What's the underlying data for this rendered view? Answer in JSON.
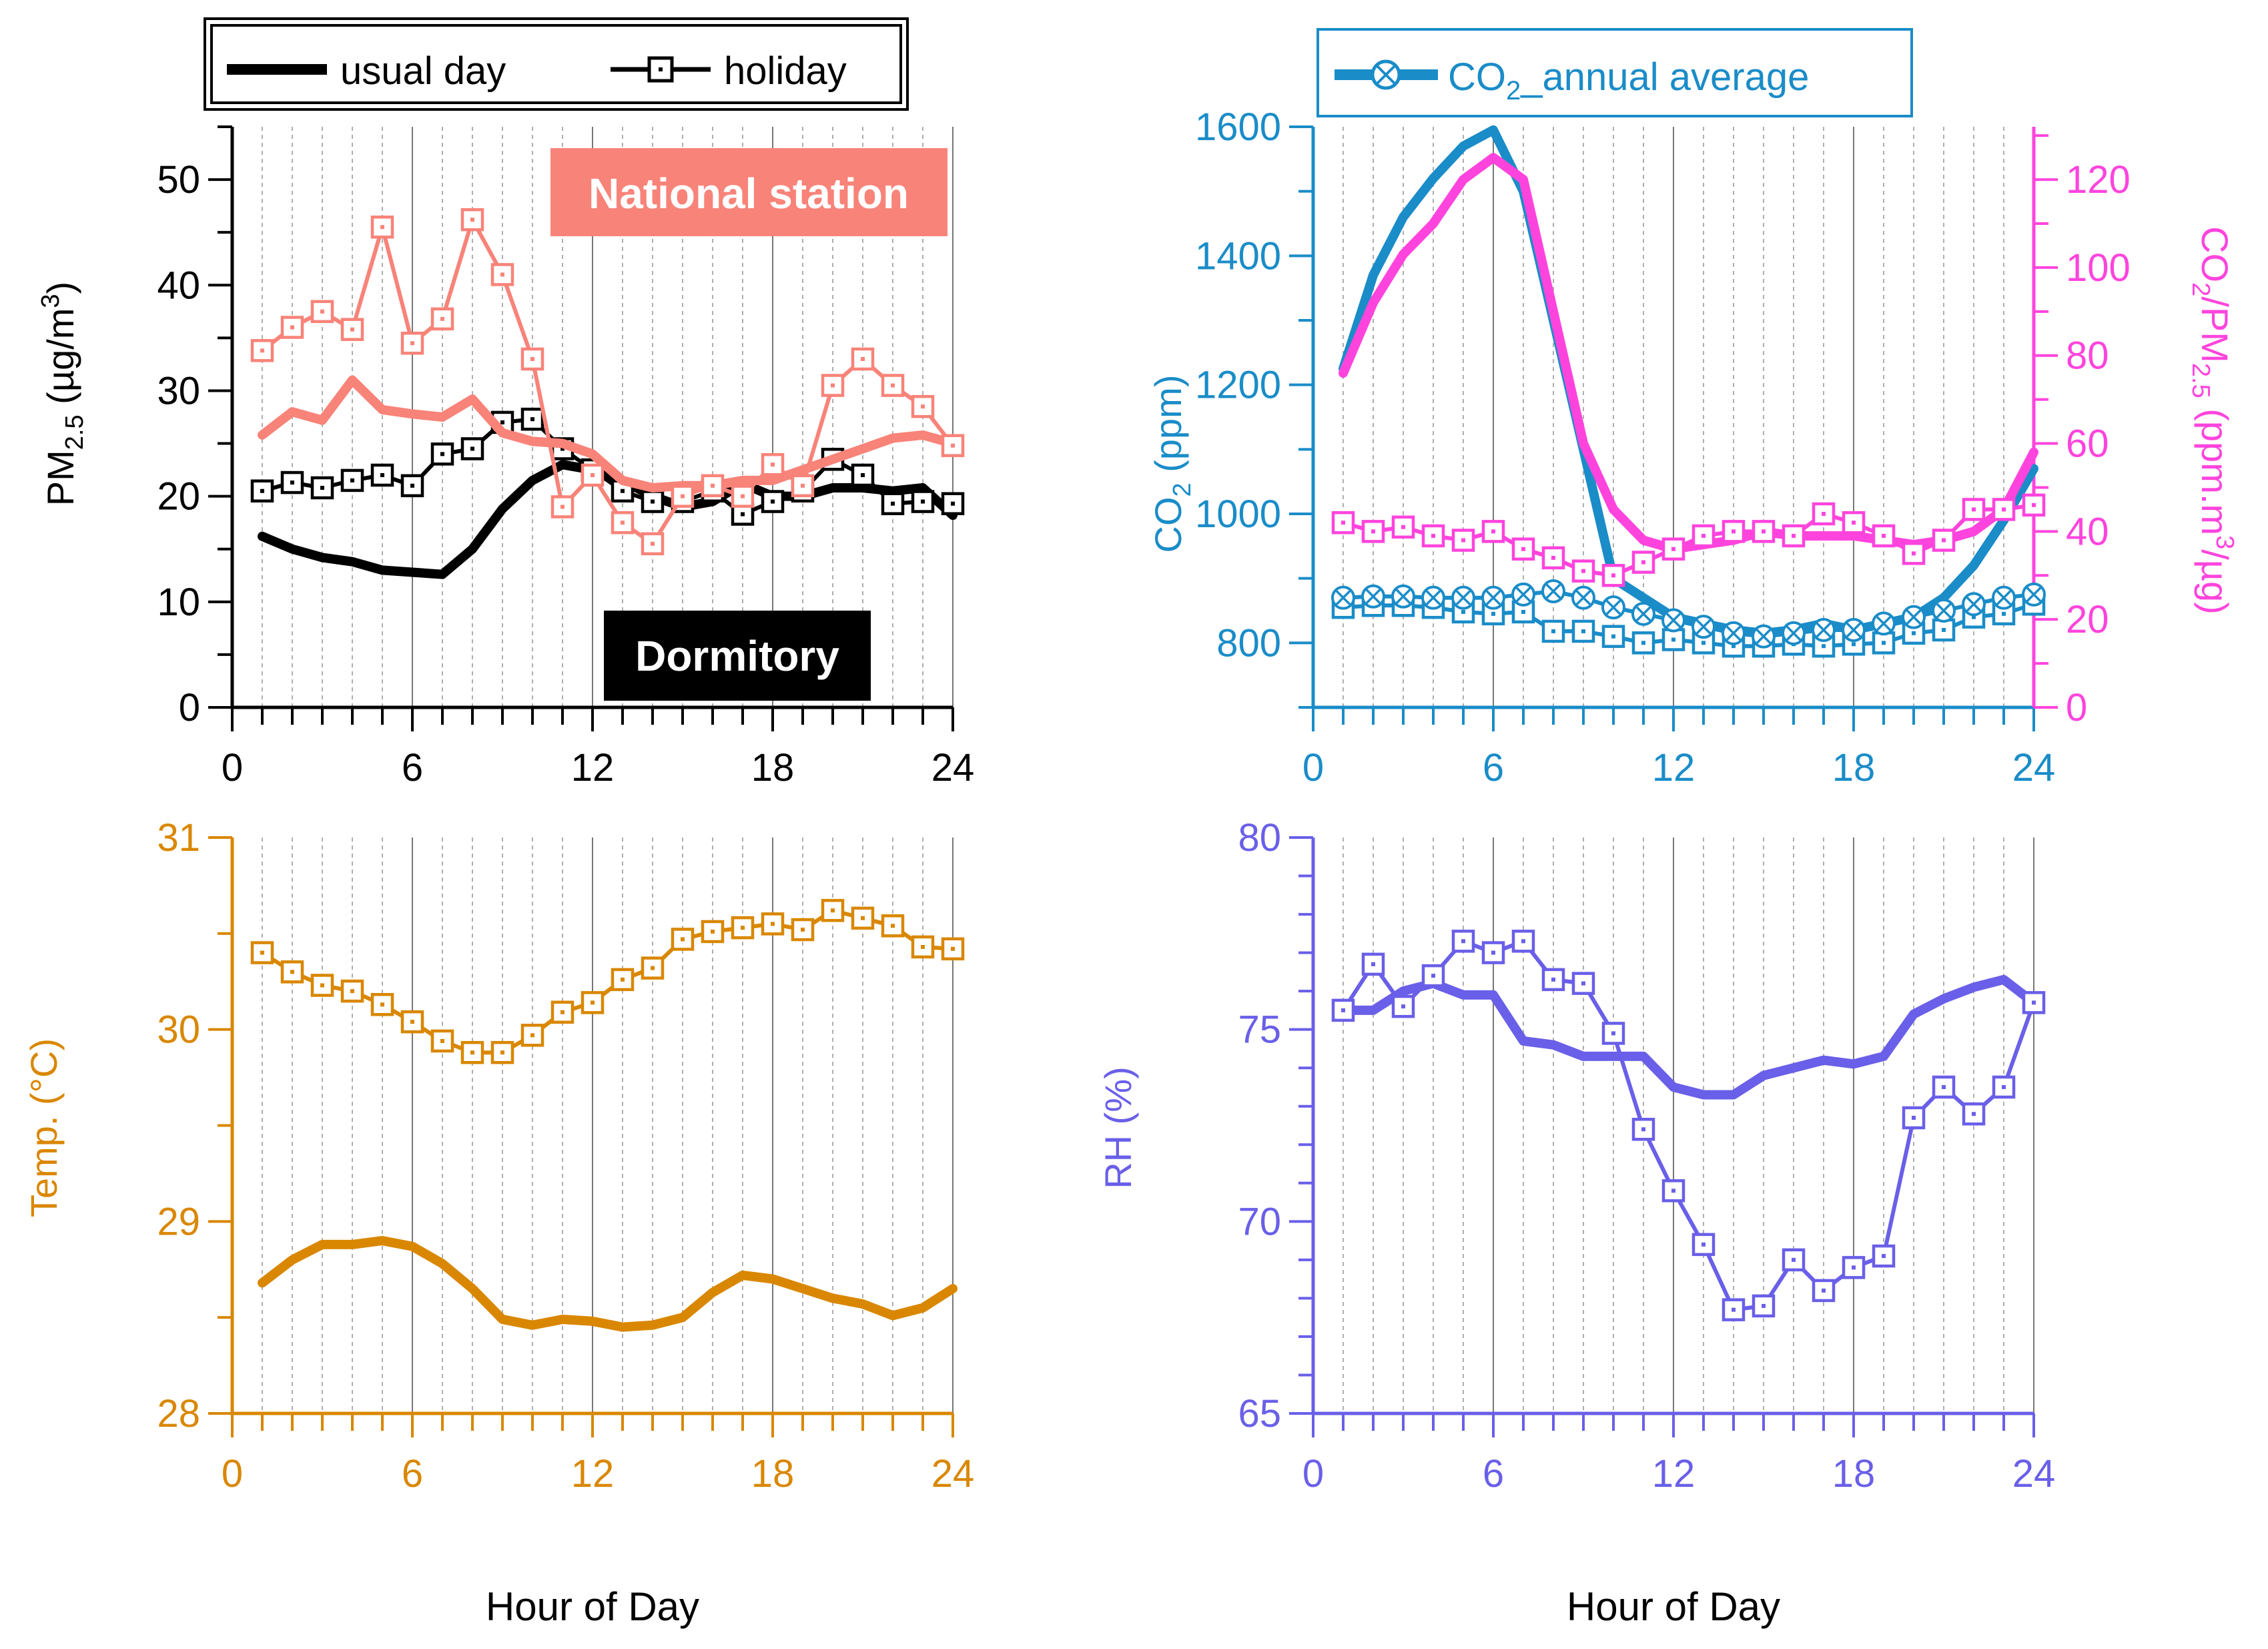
{
  "chart_data": [
    {
      "id": "pm25",
      "type": "line",
      "ylabel_main": "PM",
      "ylabel_sub": "2.5",
      "ylabel_rest": " (µg/m",
      "ylabel_sup": "3",
      "ylabel_close": ")",
      "xlim": [
        0,
        24
      ],
      "ylim": [
        0,
        55
      ],
      "x_ticks": [
        0,
        6,
        12,
        18,
        24
      ],
      "x_tick_labels": [
        "0",
        "6",
        "12",
        "18",
        "24"
      ],
      "y_ticks": [
        0,
        10,
        20,
        30,
        40,
        50
      ],
      "y_tick_labels": [
        "0",
        "10",
        "20",
        "30",
        "40",
        "50"
      ],
      "legend": {
        "usual_day": "usual day",
        "holiday": "holiday"
      },
      "annotations": {
        "national": "National station",
        "dormitory": "Dormitory"
      },
      "colors": {
        "dormitory": "#000000",
        "national": "#F88379",
        "axis": "#000000"
      },
      "x": [
        1,
        2,
        3,
        4,
        5,
        6,
        7,
        8,
        9,
        10,
        11,
        12,
        13,
        14,
        15,
        16,
        17,
        18,
        19,
        20,
        21,
        22,
        23,
        24
      ],
      "series": [
        {
          "name": "Dormitory usual day",
          "style": "thick",
          "color": "#000000",
          "values": [
            16.2,
            15,
            14.2,
            13.8,
            13,
            12.8,
            12.6,
            15,
            18.8,
            21.5,
            23,
            22.5,
            21.5,
            20,
            19,
            19.5,
            21.2,
            20,
            20,
            20.8,
            20.8,
            20.5,
            20.8,
            18.2
          ]
        },
        {
          "name": "Dormitory holiday",
          "style": "markers",
          "color": "#000000",
          "values": [
            20.5,
            21.3,
            20.8,
            21.5,
            22,
            21,
            24,
            24.5,
            27,
            27.3,
            24.5,
            22.5,
            20.5,
            19.5,
            19.5,
            20.5,
            18.3,
            19.5,
            20.5,
            23.5,
            22,
            19.3,
            19.5,
            19.3
          ]
        },
        {
          "name": "National station usual day",
          "style": "thick",
          "color": "#F88379",
          "values": [
            25.8,
            28,
            27.2,
            31,
            28.2,
            27.8,
            27.5,
            29.2,
            26,
            25.2,
            25,
            24,
            21.5,
            20.8,
            21,
            21,
            21.5,
            21.5,
            22.5,
            23.5,
            24.5,
            25.5,
            25.8,
            25
          ]
        },
        {
          "name": "National station holiday",
          "style": "markers",
          "color": "#F88379",
          "values": [
            33.8,
            36,
            37.5,
            35.8,
            45.5,
            34.5,
            36.8,
            46.2,
            41,
            33,
            19,
            22,
            17.5,
            15.5,
            20,
            21,
            20,
            23,
            21,
            30.5,
            33,
            30.5,
            28.5,
            24.8
          ]
        }
      ]
    },
    {
      "id": "co2",
      "type": "line",
      "ylabel_main": "CO",
      "ylabel_sub": "2",
      "ylabel_rest": " (ppm)",
      "y2label_main": "CO",
      "y2label_sub": "2",
      "y2label_mid": "/PM",
      "y2label_sub2": "2.5",
      "y2label_rest": " (ppm.m",
      "y2label_sup": "3",
      "y2label_close": "/µg)",
      "xlim": [
        0,
        24
      ],
      "ylim": [
        700,
        1600
      ],
      "y2lim": [
        0,
        132
      ],
      "x_ticks": [
        0,
        6,
        12,
        18,
        24
      ],
      "x_tick_labels": [
        "0",
        "6",
        "12",
        "18",
        "24"
      ],
      "y_ticks": [
        800,
        1000,
        1200,
        1400,
        1600
      ],
      "y_tick_labels": [
        "800",
        "1000",
        "1200",
        "1400",
        "1600"
      ],
      "y2_ticks": [
        0,
        20,
        40,
        60,
        80,
        100,
        120
      ],
      "y2_tick_labels": [
        "0",
        "20",
        "40",
        "60",
        "80",
        "100",
        "120"
      ],
      "legend": {
        "main": "CO",
        "sub": "2",
        "rest": "_annual average"
      },
      "colors": {
        "co2": "#1A8CC8",
        "ratio": "#FF44DD",
        "axis": "#1A8CC8",
        "axis2": "#FF44DD"
      },
      "x": [
        1,
        2,
        3,
        4,
        5,
        6,
        7,
        8,
        9,
        10,
        11,
        12,
        13,
        14,
        15,
        16,
        17,
        18,
        19,
        20,
        21,
        22,
        23,
        24
      ],
      "series": [
        {
          "name": "CO2 usual day",
          "axis": "left",
          "style": "thick",
          "color": "#1A8CC8",
          "values": [
            1225,
            1370,
            1460,
            1520,
            1570,
            1595,
            1500,
            1300,
            1100,
            900,
            870,
            840,
            830,
            820,
            815,
            820,
            830,
            820,
            830,
            840,
            870,
            920,
            990,
            1070
          ]
        },
        {
          "name": "CO2 holiday",
          "axis": "left",
          "style": "markers",
          "color": "#1A8CC8",
          "values": [
            855,
            858,
            858,
            855,
            848,
            845,
            848,
            818,
            818,
            810,
            800,
            805,
            800,
            795,
            795,
            798,
            795,
            798,
            800,
            815,
            820,
            840,
            845,
            860
          ]
        },
        {
          "name": "CO2 annual average",
          "axis": "left",
          "style": "circles",
          "color": "#1A8CC8",
          "values": [
            870,
            872,
            872,
            870,
            870,
            870,
            875,
            880,
            870,
            855,
            845,
            835,
            825,
            815,
            810,
            815,
            820,
            820,
            830,
            840,
            850,
            860,
            870,
            875
          ]
        },
        {
          "name": "CO2/PM2.5 usual day",
          "axis": "right",
          "style": "thick",
          "color": "#FF44DD",
          "values": [
            76,
            92,
            103,
            110,
            120,
            125,
            120,
            90,
            60,
            45,
            38,
            36,
            37,
            38,
            40,
            39,
            39,
            39,
            38,
            37,
            38,
            40,
            45,
            58
          ]
        },
        {
          "name": "CO2/PM2.5 holiday",
          "axis": "right",
          "style": "markers",
          "color": "#FF44DD",
          "values": [
            42,
            40,
            41,
            39,
            38,
            40,
            36,
            34,
            31,
            30,
            33,
            36,
            39,
            40,
            40,
            39,
            44,
            42,
            39,
            35,
            38,
            45,
            45,
            46
          ]
        }
      ]
    },
    {
      "id": "temp",
      "type": "line",
      "ylabel": "Temp. (°C)",
      "xlabel": "Hour of Day",
      "xlim": [
        0,
        24
      ],
      "ylim": [
        28,
        31
      ],
      "x_ticks": [
        0,
        6,
        12,
        18,
        24
      ],
      "x_tick_labels": [
        "0",
        "6",
        "12",
        "18",
        "24"
      ],
      "y_ticks": [
        28,
        29,
        30,
        31
      ],
      "y_tick_labels": [
        "28",
        "29",
        "30",
        "31"
      ],
      "colors": {
        "axis": "#D98700"
      },
      "x": [
        1,
        2,
        3,
        4,
        5,
        6,
        7,
        8,
        9,
        10,
        11,
        12,
        13,
        14,
        15,
        16,
        17,
        18,
        19,
        20,
        21,
        22,
        23,
        24
      ],
      "series": [
        {
          "name": "Temp usual day",
          "style": "thick",
          "color": "#D98700",
          "values": [
            28.68,
            28.8,
            28.88,
            28.88,
            28.9,
            28.87,
            28.78,
            28.65,
            28.49,
            28.46,
            28.49,
            28.48,
            28.45,
            28.46,
            28.5,
            28.63,
            28.72,
            28.7,
            28.65,
            28.6,
            28.57,
            28.51,
            28.55,
            28.65
          ]
        },
        {
          "name": "Temp holiday",
          "style": "markers",
          "color": "#D98700",
          "values": [
            30.4,
            30.3,
            30.23,
            30.2,
            30.13,
            30.04,
            29.94,
            29.88,
            29.88,
            29.97,
            30.09,
            30.14,
            30.26,
            30.32,
            30.47,
            30.51,
            30.53,
            30.55,
            30.52,
            30.62,
            30.58,
            30.54,
            30.43,
            30.42
          ]
        }
      ]
    },
    {
      "id": "rh",
      "type": "line",
      "ylabel": "RH (%)",
      "xlabel": "Hour of Day",
      "xlim": [
        0,
        24
      ],
      "ylim": [
        65,
        80
      ],
      "x_ticks": [
        0,
        6,
        12,
        18,
        24
      ],
      "x_tick_labels": [
        "0",
        "6",
        "12",
        "18",
        "24"
      ],
      "y_ticks": [
        65,
        70,
        75,
        80
      ],
      "y_tick_labels": [
        "65",
        "70",
        "75",
        "80"
      ],
      "colors": {
        "axis": "#6A5FE8"
      },
      "x": [
        1,
        2,
        3,
        4,
        5,
        6,
        7,
        8,
        9,
        10,
        11,
        12,
        13,
        14,
        15,
        16,
        17,
        18,
        19,
        20,
        21,
        22,
        23,
        24
      ],
      "series": [
        {
          "name": "RH usual day",
          "style": "thick",
          "color": "#6A5FE8",
          "values": [
            75.5,
            75.5,
            76,
            76.2,
            75.9,
            75.9,
            74.7,
            74.6,
            74.3,
            74.3,
            74.3,
            73.5,
            73.3,
            73.3,
            73.8,
            74,
            74.2,
            74.1,
            74.3,
            75.4,
            75.8,
            76.1,
            76.3,
            75.7
          ]
        },
        {
          "name": "RH holiday",
          "style": "markers",
          "color": "#6A5FE8",
          "values": [
            75.5,
            76.7,
            75.6,
            76.4,
            77.3,
            77,
            77.3,
            76.3,
            76.2,
            74.9,
            72.4,
            70.8,
            69.4,
            67.7,
            67.8,
            69,
            68.2,
            68.8,
            69.1,
            72.7,
            73.5,
            72.8,
            73.5,
            75.7
          ]
        }
      ]
    }
  ]
}
